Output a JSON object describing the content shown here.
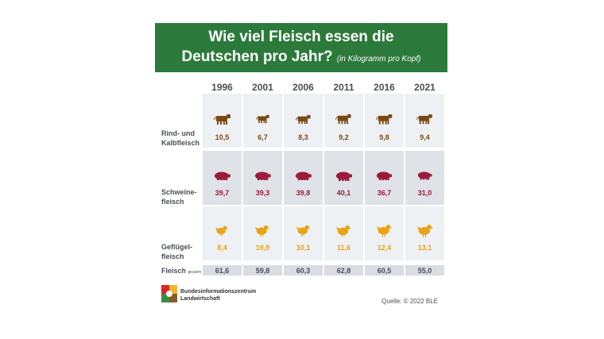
{
  "title_line1": "Wie viel Fleisch essen die",
  "title_line2": "Deutschen pro Jahr?",
  "unit": "(in Kilogramm pro Kopf)",
  "row_labels": {
    "beef_1": "Rind- und",
    "beef_2": "Kalbfleisch",
    "pork_1": "Schweine-",
    "pork_2": "fleisch",
    "poultry_1": "Geflügel-",
    "poultry_2": "fleisch",
    "total": "Fleisch",
    "total_sub": "gesamt"
  },
  "logo_text_1": "Bundesinformationszentrum",
  "logo_text_2": "Landwirtschaft",
  "source": "Quelle: © 2022 BLE",
  "colors": {
    "banner": "#2c7a3b",
    "beef": "#7a4a14",
    "pork": "#9b1b3a",
    "poultry": "#e8a317"
  },
  "chart_data": {
    "type": "table",
    "categories": [
      "1996",
      "2001",
      "2006",
      "2011",
      "2016",
      "2021"
    ],
    "series": [
      {
        "name": "Rind- und Kalbfleisch",
        "values": [
          "10,5",
          "6,7",
          "8,3",
          "9,2",
          "9,8",
          "9,4"
        ]
      },
      {
        "name": "Schweinefleisch",
        "values": [
          "39,7",
          "39,3",
          "39,8",
          "40,1",
          "36,7",
          "31,0"
        ]
      },
      {
        "name": "Geflügelfleisch",
        "values": [
          "8,4",
          "10,9",
          "10,1",
          "11,6",
          "12,4",
          "13,1"
        ]
      },
      {
        "name": "Fleisch gesamt",
        "values": [
          "61,6",
          "59,8",
          "60,3",
          "62,8",
          "60,5",
          "55,0"
        ]
      }
    ]
  }
}
